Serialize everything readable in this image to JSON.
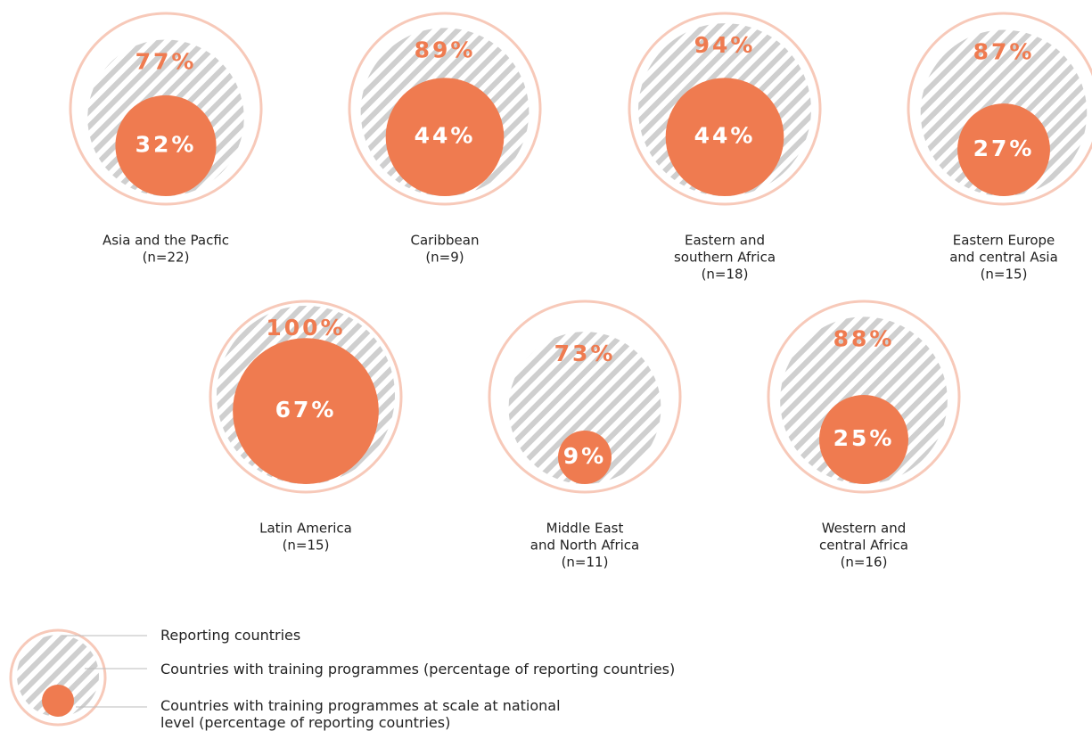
{
  "chart_data": {
    "type": "nested-circles",
    "categories": [
      [
        "Asia and the Pacfic",
        "(n=22)"
      ],
      [
        "Caribbean",
        "(n=9)"
      ],
      [
        "Eastern and",
        "southern Africa",
        "(n=18)"
      ],
      [
        "Eastern Europe",
        "and central Asia",
        "(n=15)"
      ],
      [
        "Latin America",
        "(n=15)"
      ],
      [
        "Middle East",
        "and North Africa",
        "(n=11)"
      ],
      [
        "Western and",
        "central Africa",
        "(n=16)"
      ]
    ],
    "outline_label": "Reporting countries",
    "outline_color": "#f7c9b9",
    "series": [
      {
        "name": "Countries with training programmes (percentage of reporting countries)",
        "color": "#cfcfcf",
        "values": [
          77,
          89,
          94,
          87,
          100,
          73,
          88
        ],
        "value_labels": [
          "77%",
          "89%",
          "94%",
          "87%",
          "100%",
          "73%",
          "88%"
        ]
      },
      {
        "name": "Countries with training programmes at scale at national level (percentage of reporting countries)",
        "color": "#ef7b50",
        "values": [
          32,
          44,
          44,
          27,
          67,
          9,
          25
        ],
        "value_labels": [
          "32%",
          "44%",
          "44%",
          "27%",
          "67%",
          "9%",
          "25%"
        ]
      }
    ]
  }
}
